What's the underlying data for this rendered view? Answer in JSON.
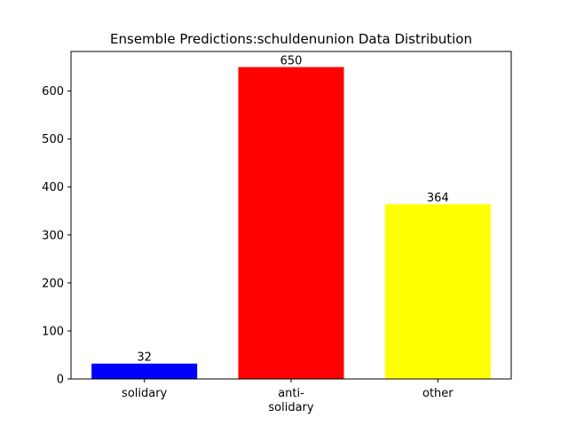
{
  "chart_data": {
    "type": "bar",
    "title": "Ensemble Predictions:schuldenunion Data Distribution",
    "xlabel": "",
    "ylabel": "",
    "categories": [
      "solidary",
      "anti-\nsolidary",
      "other"
    ],
    "values": [
      32,
      650,
      364
    ],
    "colors": [
      "#0000ff",
      "#ff0000",
      "#ffff00"
    ],
    "data_labels": [
      "32",
      "650",
      "364"
    ],
    "ylim": [
      0,
      682.5
    ],
    "yticks": [
      0,
      100,
      200,
      300,
      400,
      500,
      600
    ],
    "ytick_labels": [
      "0",
      "100",
      "200",
      "300",
      "400",
      "500",
      "600"
    ],
    "grid": false,
    "legend": false
  }
}
